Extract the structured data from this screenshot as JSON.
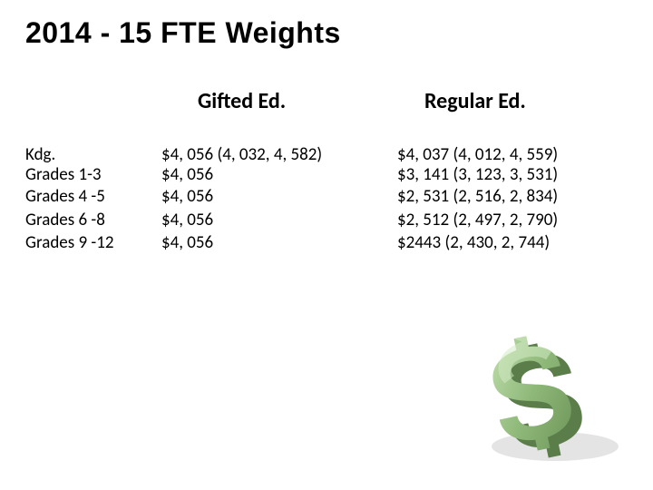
{
  "title": "2014 - 15 FTE Weights",
  "headers": {
    "gifted": "Gifted Ed.",
    "regular": "Regular Ed."
  },
  "rows": [
    {
      "label": "Kdg.\nGrades 1-3",
      "gifted": "$4, 056  (4, 032, 4, 582)\n $4, 056",
      "regular": "$4, 037  (4, 012, 4, 559)\n $3, 141  (3, 123, 3, 531)"
    },
    {
      "label": "Grades  4 -5",
      "gifted": " $4, 056",
      "regular": " $2, 531  (2, 516, 2, 834)"
    },
    {
      "label": "Grades 6 -8",
      "gifted": " $4, 056",
      "regular": " $2, 512  (2, 497, 2, 790)"
    },
    {
      "label": "Grades 9 -12",
      "gifted": "  $4, 056",
      "regular": "  $2443   (2, 430, 2, 744)"
    }
  ],
  "image": {
    "name": "dollar-sign-3d",
    "colors": {
      "main": "#8fb97a",
      "dark": "#5a7d4a",
      "light": "#b8d8a5",
      "shadow": "#cccccc"
    }
  }
}
